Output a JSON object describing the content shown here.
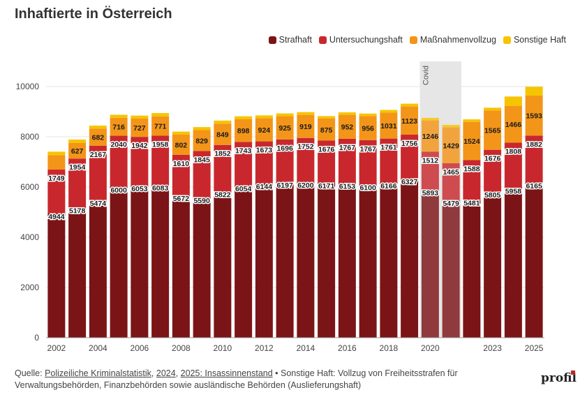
{
  "title": "Inhaftierte in Österreich",
  "legend": [
    {
      "label": "Strafhaft",
      "color": "#7b1416"
    },
    {
      "label": "Untersuchungshaft",
      "color": "#c8282d"
    },
    {
      "label": "Maßnahmenvollzug",
      "color": "#f39519"
    },
    {
      "label": "Sonstige Haft",
      "color": "#f7c400"
    }
  ],
  "footer": {
    "prefix": "Quelle: ",
    "source_link": "Polizeiliche Kriminalstatistik",
    "sep1": ", ",
    "link_2024": "2024",
    "sep2": ", ",
    "link_2025": "2025: Insassinnenstand",
    "note": " • Sonstige Haft: Vollzug von Freiheitsstrafen für Verwaltungsbehörden, Finanzbehörden sowie ausländische Behörden (Auslieferungshaft)"
  },
  "logo": "profil",
  "chart_data": {
    "type": "bar",
    "stacked": true,
    "title": "Inhaftierte in Österreich",
    "categories": [
      "2002",
      "2003",
      "2004",
      "2005",
      "2006",
      "2007",
      "2008",
      "2009",
      "2010",
      "2011",
      "2012",
      "2013",
      "2014",
      "2015",
      "2016",
      "2017",
      "2018",
      "2019",
      "2020",
      "2021",
      "2022",
      "2023",
      "2024",
      "2025"
    ],
    "x_tick_labels": [
      "2002",
      "",
      "2004",
      "",
      "2006",
      "",
      "2008",
      "",
      "2010",
      "",
      "2012",
      "",
      "2014",
      "",
      "2016",
      "",
      "2018",
      "",
      "2020",
      "",
      "",
      "2023",
      "",
      "2025"
    ],
    "series": [
      {
        "name": "Strafhaft",
        "color": "#7b1416",
        "values": [
          4944,
          5178,
          5474,
          6000,
          6053,
          6083,
          5672,
          5590,
          5822,
          6054,
          6144,
          6197,
          6200,
          6171,
          6153,
          6100,
          6166,
          6327,
          5893,
          5479,
          5481,
          5805,
          5958,
          6165
        ]
      },
      {
        "name": "Untersuchungshaft",
        "color": "#c8282d",
        "values": [
          1749,
          1954,
          2167,
          2040,
          1942,
          1958,
          1610,
          1845,
          1852,
          1743,
          1673,
          1696,
          1752,
          1676,
          1767,
          1767,
          1761,
          1756,
          1512,
          1465,
          1588,
          1676,
          1808,
          1882
        ]
      },
      {
        "name": "Maßnahmenvollzug",
        "color": "#f39519",
        "values": [
          573,
          627,
          682,
          716,
          727,
          771,
          802,
          829,
          849,
          898,
          924,
          925,
          919,
          875,
          952,
          956,
          1031,
          1123,
          1246,
          1429,
          1524,
          1565,
          1466,
          1593
        ],
        "label_first": false
      },
      {
        "name": "Sonstige Haft",
        "color": "#f7c400",
        "values": [
          140,
          130,
          120,
          120,
          120,
          130,
          120,
          120,
          120,
          120,
          110,
          110,
          110,
          100,
          100,
          100,
          110,
          110,
          100,
          100,
          100,
          110,
          370,
          350
        ]
      }
    ],
    "yticks": [
      0,
      2000,
      4000,
      6000,
      8000,
      10000
    ],
    "ylim": [
      0,
      11000
    ],
    "grid": true,
    "legend_position": "top-right",
    "annotation": {
      "label": "Covid",
      "x_start": "2020",
      "x_end": "2021"
    }
  }
}
